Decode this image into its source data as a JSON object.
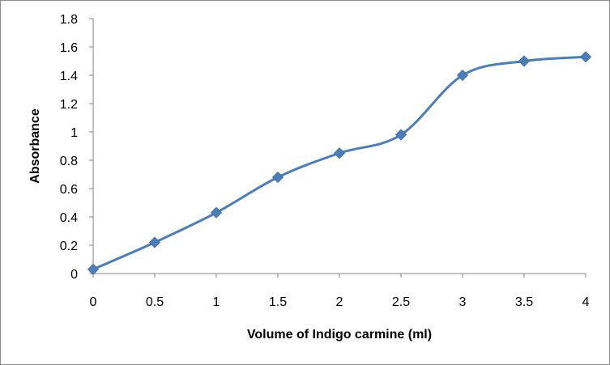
{
  "chart_data": {
    "type": "line",
    "title": "",
    "xlabel": "Volume of Indigo carmine (ml)",
    "ylabel": "Absorbance",
    "x_ticks": [
      "0",
      "0.5",
      "1",
      "1.5",
      "2",
      "2.5",
      "3",
      "3.5",
      "4"
    ],
    "y_ticks": [
      "0",
      "0.2",
      "0.4",
      "0.6",
      "0.8",
      "1",
      "1.2",
      "1.4",
      "1.6",
      "1.8"
    ],
    "xlim": [
      0,
      4
    ],
    "ylim": [
      0,
      1.8
    ],
    "grid": false,
    "legend": "none",
    "smoothed": true,
    "marker": "diamond",
    "series": [
      {
        "color": "#4a7ebb",
        "x": [
          0,
          0.5,
          1,
          1.5,
          2,
          2.5,
          3,
          3.5,
          4
        ],
        "y": [
          0.03,
          0.22,
          0.43,
          0.68,
          0.85,
          0.98,
          1.4,
          1.5,
          1.53
        ]
      }
    ]
  }
}
